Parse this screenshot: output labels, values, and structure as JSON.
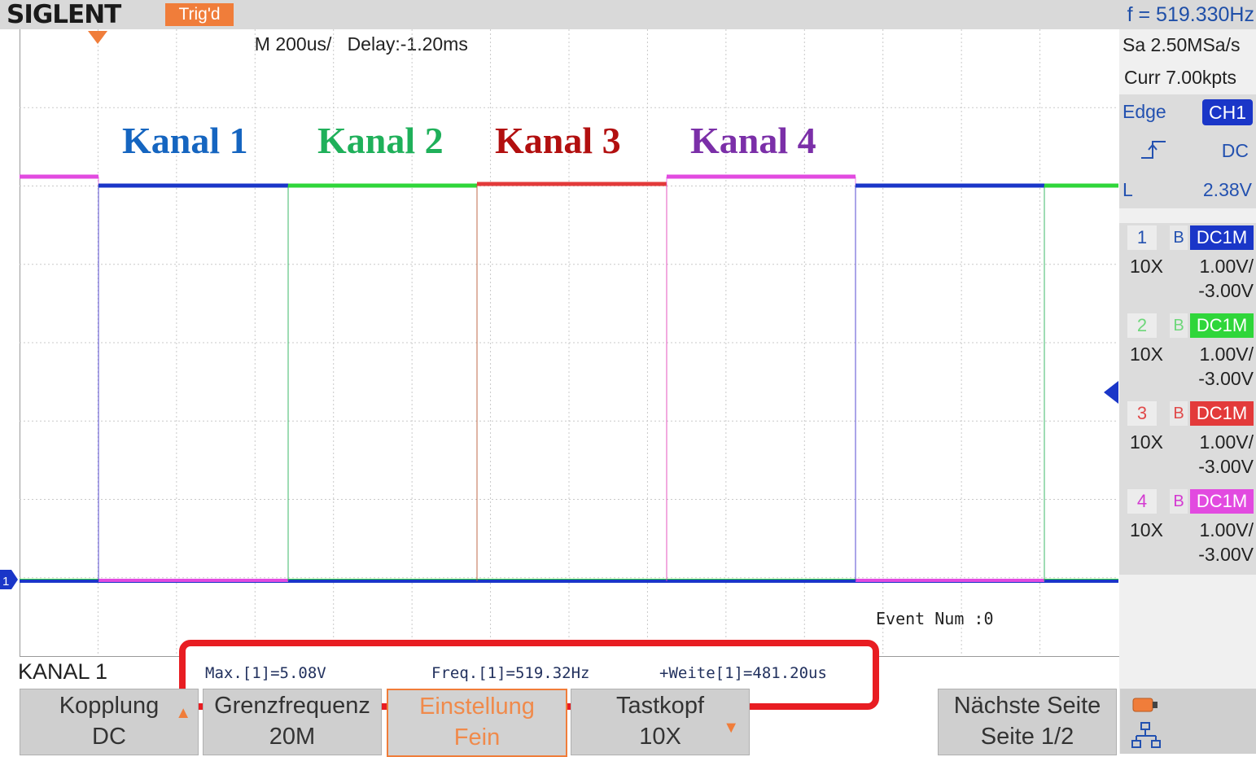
{
  "header": {
    "brand": "SIGLENT",
    "trigger_status": "Trig'd",
    "timebase": "M 200us/",
    "delay": "Delay:-1.20ms",
    "frequency": "f = 519.330Hz"
  },
  "acquisition": {
    "sample_rate": "Sa 2.50MSa/s",
    "memory": "Curr 7.00kpts"
  },
  "trigger": {
    "type": "Edge",
    "source": "CH1",
    "coupling": "DC",
    "level_label": "L",
    "level": "2.38V"
  },
  "channels": [
    {
      "number": "1",
      "bw": "B",
      "coupling": "DC1M",
      "probe": "10X",
      "vdiv": "1.00V/",
      "offset": "-3.00V",
      "color": "#1a36c8",
      "text_color": "#2351b0"
    },
    {
      "number": "2",
      "bw": "B",
      "coupling": "DC1M",
      "probe": "10X",
      "vdiv": "1.00V/",
      "offset": "-3.00V",
      "color": "#2fd63a",
      "text_color": "#6ed77a"
    },
    {
      "number": "3",
      "bw": "B",
      "coupling": "DC1M",
      "probe": "10X",
      "vdiv": "1.00V/",
      "offset": "-3.00V",
      "color": "#e33a3a",
      "text_color": "#e04a4a"
    },
    {
      "number": "4",
      "bw": "B",
      "coupling": "DC1M",
      "probe": "10X",
      "vdiv": "1.00V/",
      "offset": "-3.00V",
      "color": "#e24ae0",
      "text_color": "#d33ad1"
    }
  ],
  "annotations": {
    "k1": "Kanal 1",
    "k2": "Kanal 2",
    "k3": "Kanal 3",
    "k4": "Kanal 4",
    "k1_color": "#1565c0",
    "k2_color": "#1fb05a",
    "k3_color": "#b20f0f",
    "k4_color": "#7b2fa8"
  },
  "screen": {
    "ch1_marker": "1",
    "event_num": "Event Num :0"
  },
  "measurements": {
    "channel_label": "KANAL 1",
    "max": "Max.[1]=5.08V",
    "freq": "Freq.[1]=519.32Hz",
    "width": "+Weite[1]=481.20us"
  },
  "softkeys": [
    {
      "line1": "Kopplung",
      "line2": "DC"
    },
    {
      "line1": "Grenzfrequenz",
      "line2": "20M"
    },
    {
      "line1": "Einstellung",
      "line2": "Fein"
    },
    {
      "line1": "Tastkopf",
      "line2": "10X"
    },
    {
      "line1": "Nächste Seite",
      "line2": "Seite 1/2"
    }
  ],
  "icons": [
    "battery-icon",
    "network-icon"
  ]
}
